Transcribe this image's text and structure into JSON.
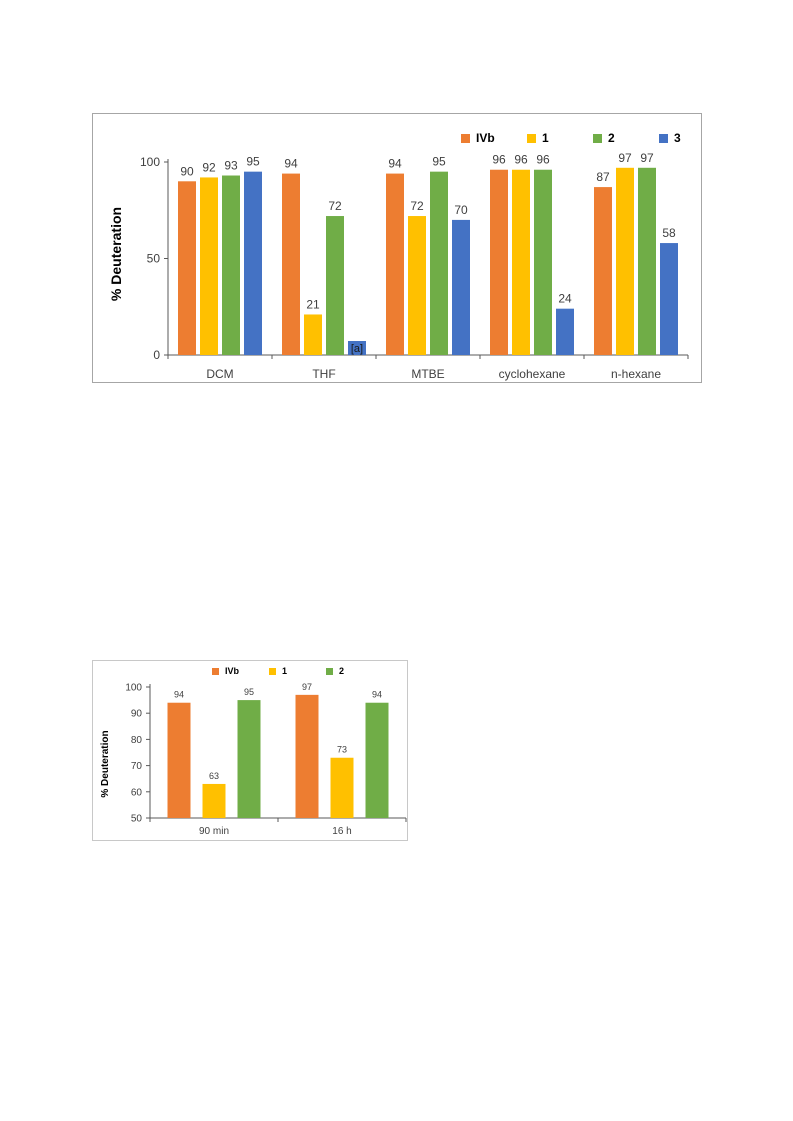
{
  "chart_data": [
    {
      "type": "bar",
      "categories": [
        "DCM",
        "THF",
        "MTBE",
        "cyclohexane",
        "n-hexane"
      ],
      "series": [
        {
          "name": "IVb",
          "color": "#ed7d31",
          "values": [
            90,
            94,
            94,
            96,
            87
          ]
        },
        {
          "name": "1",
          "color": "#ffc000",
          "values": [
            92,
            21,
            72,
            96,
            97
          ]
        },
        {
          "name": "2",
          "color": "#70ad47",
          "values": [
            93,
            72,
            95,
            96,
            97
          ]
        },
        {
          "name": "3",
          "color": "#4472c4",
          "values": [
            95,
            null,
            70,
            24,
            58
          ]
        }
      ],
      "annotations": [
        {
          "category": "THF",
          "series": "3",
          "text": "[a]"
        }
      ],
      "ylabel": "% Deuteration",
      "ylim": [
        0,
        100
      ],
      "yticks": [
        "0",
        "50",
        "100"
      ],
      "grid": false,
      "legend": "top-right"
    },
    {
      "type": "bar",
      "categories": [
        "90 min",
        "16 h"
      ],
      "series": [
        {
          "name": "IVb",
          "color": "#ed7d31",
          "values": [
            94,
            97
          ]
        },
        {
          "name": "1",
          "color": "#ffc000",
          "values": [
            63,
            73
          ]
        },
        {
          "name": "2",
          "color": "#70ad47",
          "values": [
            95,
            94
          ]
        }
      ],
      "ylabel": "% Deuteration",
      "ylim": [
        50,
        100
      ],
      "yticks": [
        "50",
        "60",
        "70",
        "80",
        "90",
        "100"
      ],
      "grid": false,
      "legend": "top"
    }
  ]
}
